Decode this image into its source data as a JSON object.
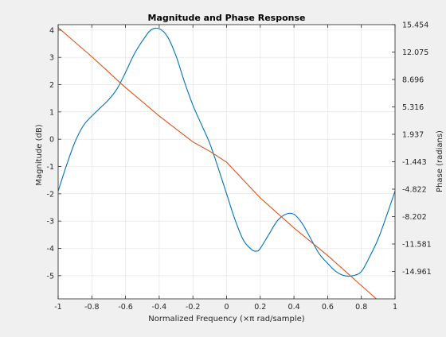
{
  "chart_data": {
    "type": "line",
    "title": "Magnitude and Phase Response",
    "xlabel": "Normalized Frequency (×π rad/sample)",
    "ylabel_left": "Magnitude (dB)",
    "ylabel_right": "Phase (radians)",
    "xlim": [
      -1,
      1
    ],
    "ylim_left": [
      -5.85,
      4.2
    ],
    "ylim_right": [
      -18.34,
      15.454
    ],
    "x_ticks": [
      "-1",
      "-0.8",
      "-0.6",
      "-0.4",
      "-0.2",
      "0",
      "0.2",
      "0.4",
      "0.6",
      "0.8",
      "1"
    ],
    "y_ticks_left": [
      "4",
      "3",
      "2",
      "1",
      "0",
      "-1",
      "-2",
      "-3",
      "-4",
      "-5"
    ],
    "y_ticks_right": [
      "15.454",
      "12.075",
      "8.696",
      "5.316",
      "1.937",
      "-1.443",
      "-4.822",
      "-8.202",
      "-11.581",
      "-14.961"
    ],
    "grid": true,
    "series": [
      {
        "color": "#0072bd",
        "axis": "left",
        "x": [
          -1.0,
          -0.95,
          -0.9,
          -0.85,
          -0.8,
          -0.75,
          -0.7,
          -0.65,
          -0.6,
          -0.55,
          -0.5,
          -0.45,
          -0.4,
          -0.35,
          -0.3,
          -0.25,
          -0.2,
          -0.15,
          -0.1,
          -0.05,
          0.0,
          0.05,
          0.1,
          0.15,
          0.18,
          0.2,
          0.25,
          0.3,
          0.35,
          0.4,
          0.45,
          0.5,
          0.55,
          0.6,
          0.65,
          0.7,
          0.75,
          0.8,
          0.85,
          0.9,
          0.95,
          1.0
        ],
        "y": [
          -1.9,
          -0.95,
          -0.1,
          0.5,
          0.85,
          1.15,
          1.45,
          1.85,
          2.45,
          3.1,
          3.6,
          4.0,
          4.05,
          3.75,
          3.05,
          2.1,
          1.25,
          0.55,
          -0.15,
          -1.05,
          -2.0,
          -2.95,
          -3.7,
          -4.05,
          -4.1,
          -4.0,
          -3.5,
          -3.0,
          -2.75,
          -2.75,
          -3.1,
          -3.65,
          -4.2,
          -4.55,
          -4.85,
          -5.0,
          -5.0,
          -4.85,
          -4.3,
          -3.65,
          -2.8,
          -1.9
        ]
      },
      {
        "color": "#d95319",
        "axis": "right",
        "x": [
          -1.0,
          -0.8,
          -0.6,
          -0.4,
          -0.2,
          -0.1,
          0.0,
          0.2,
          0.4,
          0.6,
          0.8,
          1.0
        ],
        "y": [
          15.1,
          11.5,
          7.7,
          4.2,
          1.0,
          -0.15,
          -1.5,
          -5.9,
          -9.6,
          -13.0,
          -16.7,
          -20.4
        ]
      }
    ]
  }
}
